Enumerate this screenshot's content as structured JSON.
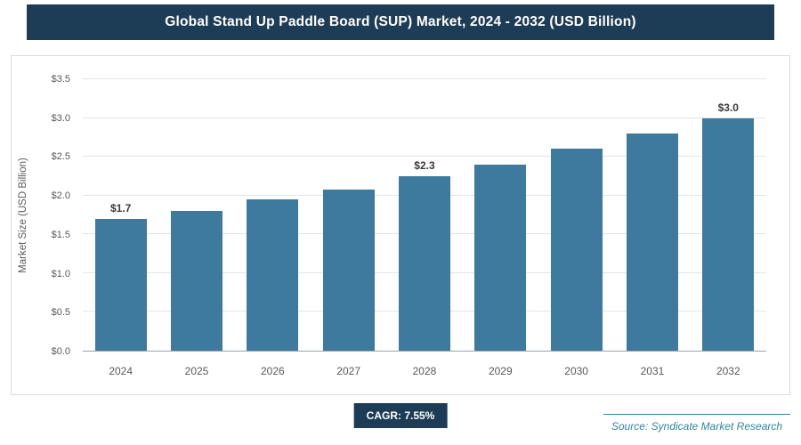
{
  "title": "Global Stand Up Paddle Board (SUP) Market, 2024 - 2032 (USD Billion)",
  "cagr_label": "CAGR: 7.55%",
  "source": "Source: Syndicate Market Research",
  "colors": {
    "title_bg": "#1d3c55",
    "bar": "#3d7a9e",
    "source_text": "#31849b"
  },
  "chart_data": {
    "type": "bar",
    "title": "Global Stand Up Paddle Board (SUP) Market, 2024 - 2032 (USD Billion)",
    "categories": [
      "2024",
      "2025",
      "2026",
      "2027",
      "2028",
      "2029",
      "2030",
      "2031",
      "2032"
    ],
    "values": [
      1.7,
      1.8,
      1.95,
      2.08,
      2.25,
      2.4,
      2.6,
      2.8,
      3.0
    ],
    "bar_labels": [
      "$1.7",
      null,
      null,
      null,
      "$2.3",
      null,
      null,
      null,
      "$3.0"
    ],
    "xlabel": "",
    "ylabel": "Market Size (USD Billion)",
    "ylim": [
      0,
      3.5
    ],
    "ytick_step": 0.5,
    "ytick_labels": [
      "$0.0",
      "$0.5",
      "$1.0",
      "$1.5",
      "$2.0",
      "$2.5",
      "$3.0",
      "$3.5"
    ],
    "grid": true,
    "legend": "none"
  }
}
